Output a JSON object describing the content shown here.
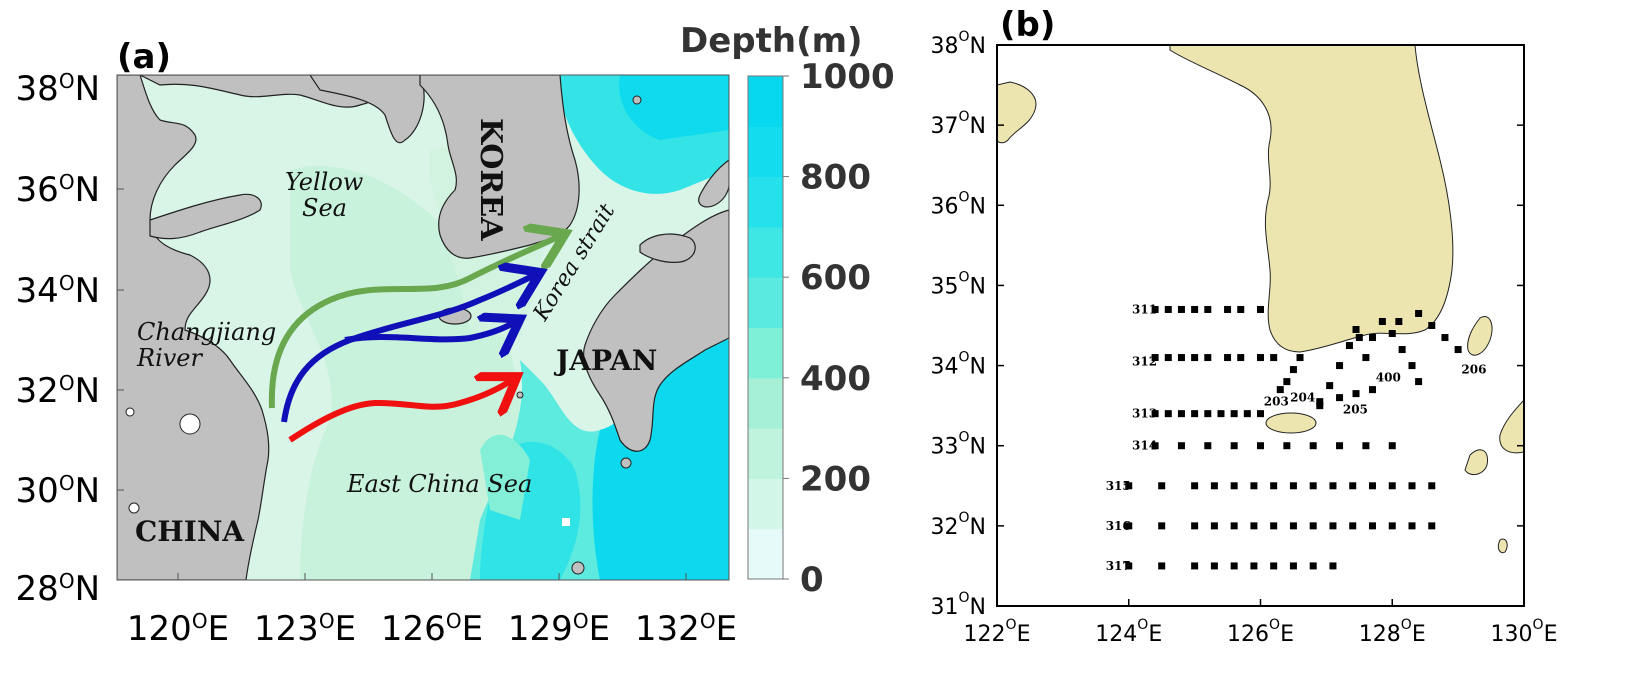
{
  "panel_a": {
    "label": "(a)",
    "colorbar": {
      "title": "Depth(m)",
      "ticks": [
        "1000",
        "800",
        "600",
        "400",
        "200",
        "0"
      ],
      "colors": [
        "#e6fafa",
        "#d2f7e8",
        "#bff3dd",
        "#a5f0d6",
        "#7ff0d8",
        "#5beadf",
        "#3ee6e4",
        "#24e1ec",
        "#12dcee",
        "#08d8ef"
      ]
    },
    "lat_ticks": [
      {
        "deg": "38",
        "unit": "O",
        "hemi": "N"
      },
      {
        "deg": "36",
        "unit": "O",
        "hemi": "N"
      },
      {
        "deg": "34",
        "unit": "O",
        "hemi": "N"
      },
      {
        "deg": "32",
        "unit": "O",
        "hemi": "N"
      },
      {
        "deg": "30",
        "unit": "O",
        "hemi": "N"
      },
      {
        "deg": "28",
        "unit": "O",
        "hemi": "N"
      }
    ],
    "lon_ticks": [
      {
        "deg": "120",
        "unit": "O",
        "hemi": "E"
      },
      {
        "deg": "123",
        "unit": "O",
        "hemi": "E"
      },
      {
        "deg": "126",
        "unit": "O",
        "hemi": "E"
      },
      {
        "deg": "129",
        "unit": "O",
        "hemi": "E"
      },
      {
        "deg": "132",
        "unit": "O",
        "hemi": "E"
      }
    ],
    "labels": {
      "korea": "KOREA",
      "japan": "JAPAN",
      "china": "CHINA",
      "yellow_sea_1": "Yellow",
      "yellow_sea_2": "Sea",
      "changjiang_1": "Changjiang",
      "changjiang_2": "River",
      "korea_strait": "Korea strait",
      "ecs": "East China Sea"
    },
    "current_colors": {
      "green": "#6aa84f",
      "blue": "#1010b8",
      "red": "#f01010"
    }
  },
  "panel_b": {
    "label": "(b)",
    "lat_ticks": [
      {
        "deg": "38",
        "unit": "O",
        "hemi": "N"
      },
      {
        "deg": "37",
        "unit": "O",
        "hemi": "N"
      },
      {
        "deg": "36",
        "unit": "O",
        "hemi": "N"
      },
      {
        "deg": "35",
        "unit": "O",
        "hemi": "N"
      },
      {
        "deg": "34",
        "unit": "O",
        "hemi": "N"
      },
      {
        "deg": "33",
        "unit": "O",
        "hemi": "N"
      },
      {
        "deg": "32",
        "unit": "O",
        "hemi": "N"
      },
      {
        "deg": "31",
        "unit": "O",
        "hemi": "N"
      }
    ],
    "lon_ticks": [
      {
        "deg": "122",
        "unit": "O",
        "hemi": "E"
      },
      {
        "deg": "124",
        "unit": "O",
        "hemi": "E"
      },
      {
        "deg": "126",
        "unit": "O",
        "hemi": "E"
      },
      {
        "deg": "128",
        "unit": "O",
        "hemi": "E"
      },
      {
        "deg": "130",
        "unit": "O",
        "hemi": "E"
      }
    ],
    "land_color": "#ede5b0",
    "station_lines": [
      {
        "name": "311",
        "lat": 34.7,
        "lon": [
          124.4,
          124.6,
          124.8,
          125.0,
          125.2,
          125.5,
          125.7,
          126.0
        ]
      },
      {
        "name": "312",
        "lat": 34.1,
        "lon": [
          124.4,
          124.6,
          124.8,
          125.0,
          125.2,
          125.5,
          125.7,
          126.0,
          126.2
        ]
      },
      {
        "name": "313",
        "lat": 33.4,
        "lon": [
          124.4,
          124.6,
          124.8,
          125.0,
          125.2,
          125.4,
          125.6,
          125.8,
          126.0
        ]
      },
      {
        "name": "314",
        "lat": 33.0,
        "lon": [
          124.4,
          124.8,
          125.2,
          125.6,
          126.0,
          126.4,
          126.8,
          127.2,
          127.6,
          128.0
        ]
      },
      {
        "name": "315",
        "lat": 32.5,
        "lon": [
          124.0,
          124.5,
          125.0,
          125.3,
          125.6,
          125.9,
          126.2,
          126.5,
          126.8,
          127.1,
          127.4,
          127.7,
          128.0,
          128.3,
          128.6
        ]
      },
      {
        "name": "316",
        "lat": 32.0,
        "lon": [
          124.0,
          124.5,
          125.0,
          125.3,
          125.6,
          125.9,
          126.2,
          126.5,
          126.8,
          127.1,
          127.4,
          127.7,
          128.0,
          128.3,
          128.6
        ]
      },
      {
        "name": "317",
        "lat": 31.5,
        "lon": [
          124.0,
          124.5,
          125.0,
          125.3,
          125.6,
          125.9,
          126.2,
          126.5,
          126.8,
          127.1
        ]
      }
    ],
    "station_lines_diag": [
      {
        "name": "203",
        "pts": [
          [
            126.3,
            33.7
          ],
          [
            126.4,
            33.8
          ],
          [
            126.5,
            33.95
          ],
          [
            126.6,
            34.1
          ]
        ]
      },
      {
        "name": "204",
        "pts": [
          [
            126.9,
            33.5
          ],
          [
            127.05,
            33.75
          ],
          [
            127.2,
            34.0
          ],
          [
            127.35,
            34.25
          ],
          [
            127.45,
            34.45
          ]
        ]
      },
      {
        "name": "205",
        "pts": [
          [
            126.9,
            33.55
          ],
          [
            127.2,
            33.6
          ],
          [
            127.45,
            33.65
          ],
          [
            127.7,
            33.7
          ],
          [
            127.6,
            34.1
          ],
          [
            127.5,
            34.35
          ]
        ]
      },
      {
        "name": "400",
        "pts": [
          [
            127.7,
            34.35
          ],
          [
            127.85,
            34.55
          ],
          [
            128.0,
            34.4
          ],
          [
            128.15,
            34.2
          ],
          [
            128.3,
            34.0
          ],
          [
            128.4,
            33.8
          ]
        ]
      },
      {
        "name": "206",
        "pts": [
          [
            128.1,
            34.55
          ],
          [
            128.4,
            34.65
          ],
          [
            128.6,
            34.5
          ],
          [
            128.8,
            34.35
          ],
          [
            129.0,
            34.2
          ]
        ]
      }
    ],
    "station_labels": [
      {
        "text": "311",
        "lon": 124.05,
        "lat": 34.7
      },
      {
        "text": "312",
        "lon": 124.05,
        "lat": 34.05
      },
      {
        "text": "313",
        "lon": 124.05,
        "lat": 33.4
      },
      {
        "text": "314",
        "lon": 124.05,
        "lat": 33.0
      },
      {
        "text": "315",
        "lon": 123.65,
        "lat": 32.5
      },
      {
        "text": "316",
        "lon": 123.65,
        "lat": 32.0
      },
      {
        "text": "317",
        "lon": 123.65,
        "lat": 31.5
      },
      {
        "text": "203",
        "lon": 126.05,
        "lat": 33.55
      },
      {
        "text": "204",
        "lon": 126.45,
        "lat": 33.6
      },
      {
        "text": "205",
        "lon": 127.25,
        "lat": 33.45
      },
      {
        "text": "400",
        "lon": 127.75,
        "lat": 33.85
      },
      {
        "text": "206",
        "lon": 129.05,
        "lat": 33.95
      }
    ]
  }
}
